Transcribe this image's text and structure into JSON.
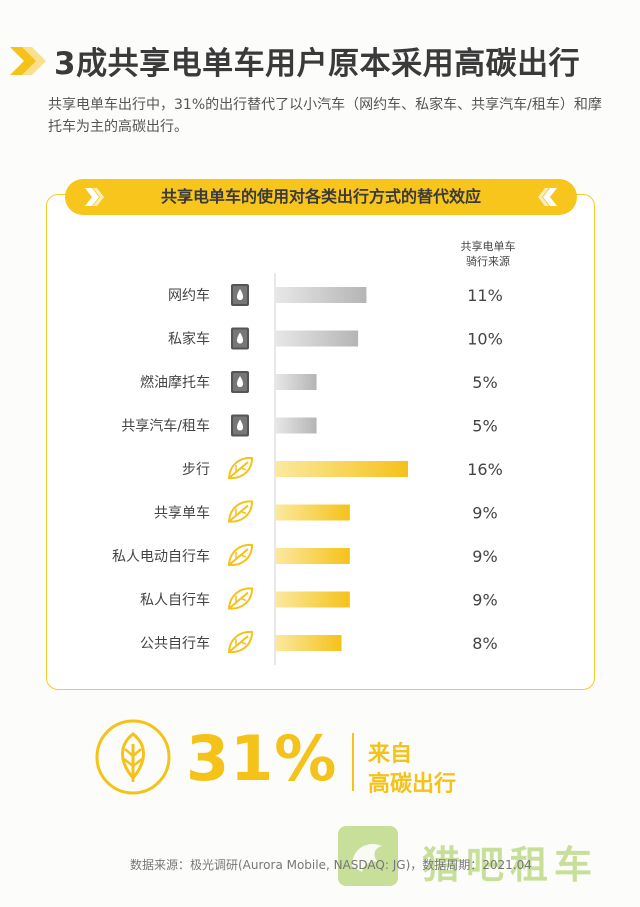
{
  "title": "3成共享电单车用户原本采用高碳出行",
  "subtitle": "共享电单车出行中，31%的出行替代了以小汽车（网约车、私家车、共享汽车/租车）和摩托车为主的高碳出行。",
  "banner_title": "共享电单车的使用对各类出行方式的替代效应",
  "col_header_line1": "共享电单车",
  "col_header_line2": "骑行来源",
  "colors": {
    "accent": "#f7c51c",
    "high_carbon": "#bfbfbf",
    "low_carbon": "#f5c21a"
  },
  "chart_data": {
    "type": "bar",
    "orientation": "horizontal",
    "categories": [
      "网约车",
      "私家车",
      "燃油摩托车",
      "共享汽车/租车",
      "步行",
      "共享单车",
      "私人电动自行车",
      "私人自行车",
      "公共自行车"
    ],
    "values": [
      11,
      10,
      5,
      5,
      16,
      9,
      9,
      9,
      8
    ],
    "value_labels": [
      "11%",
      "10%",
      "5%",
      "5%",
      "16%",
      "9%",
      "9%",
      "9%",
      "8%"
    ],
    "icons": [
      "fuel-icon",
      "fuel-icon",
      "fuel-icon",
      "fuel-icon",
      "leaf-icon",
      "leaf-icon",
      "leaf-icon",
      "leaf-icon",
      "leaf-icon"
    ],
    "groups": [
      "high",
      "high",
      "high",
      "high",
      "low",
      "low",
      "low",
      "low",
      "low"
    ],
    "xlim": [
      0,
      16
    ]
  },
  "highlight_value": "31%",
  "highlight_label_line1": "来自",
  "highlight_label_line2": "高碳出行",
  "source": "数据来源：极光调研(Aurora Mobile, NASDAQ: JG)，数据周期：2021.04",
  "watermark_text": "猎吧租车"
}
